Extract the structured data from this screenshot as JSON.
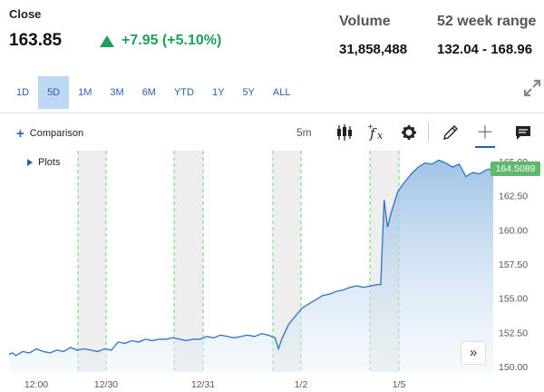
{
  "quote": {
    "close_label": "Close",
    "price": "163.85",
    "change": "+7.95 (+5.10%)",
    "volume_label": "Volume",
    "volume": "31,858,488",
    "range_label": "52 week range",
    "range": "132.04 - 168.96"
  },
  "colors": {
    "up": "#1f9f5a",
    "accent": "#2a5fb0",
    "area": "#9cc2e6",
    "session": "#66dd66",
    "tag": "#5fb86a"
  },
  "ranges": [
    "1D",
    "5D",
    "1M",
    "3M",
    "6M",
    "YTD",
    "1Y",
    "5Y",
    "ALL"
  ],
  "active_range": "5D",
  "toolbar": {
    "comparison_label": "Comparison",
    "interval": "5m",
    "icons": [
      "candlestick-icon",
      "function-icon",
      "gear-icon",
      "pencil-icon",
      "crosshair-icon",
      "comment-icon"
    ]
  },
  "plots_label": "Plots",
  "last_price_tag": "164.5089",
  "chart_data": {
    "type": "area",
    "x_ticks": [
      "12:00",
      "12/30",
      "12/31",
      "1/2",
      "1/5"
    ],
    "y_ticks": [
      "165.00",
      "162.50",
      "160.00",
      "157.50",
      "155.00",
      "152.50",
      "150.00"
    ],
    "ylim": [
      149.6,
      165.4
    ],
    "grid": false,
    "series": [
      {
        "values": [
          [
            0,
            150.9
          ],
          [
            1,
            151.0
          ],
          [
            2,
            150.8
          ],
          [
            4,
            151.1
          ],
          [
            6,
            151.0
          ],
          [
            8,
            151.3
          ],
          [
            10,
            151.1
          ],
          [
            12,
            151.0
          ],
          [
            14,
            151.2
          ],
          [
            16,
            151.1
          ],
          [
            18,
            151.4
          ],
          [
            20,
            151.2
          ],
          [
            22,
            151.3
          ],
          [
            24,
            151.2
          ],
          [
            26,
            151.1
          ],
          [
            28,
            151.3
          ],
          [
            30,
            151.2
          ],
          [
            32,
            151.8
          ],
          [
            34,
            151.7
          ],
          [
            36,
            151.9
          ],
          [
            38,
            151.8
          ],
          [
            40,
            152.0
          ],
          [
            42,
            151.9
          ],
          [
            44,
            152.0
          ],
          [
            46,
            152.0
          ],
          [
            48,
            152.1
          ],
          [
            50,
            152.0
          ],
          [
            52,
            151.9
          ],
          [
            54,
            152.0
          ],
          [
            56,
            152.0
          ],
          [
            58,
            152.2
          ],
          [
            60,
            152.1
          ],
          [
            62,
            152.3
          ],
          [
            64,
            152.2
          ],
          [
            66,
            152.1
          ],
          [
            68,
            152.2
          ],
          [
            70,
            152.3
          ],
          [
            72,
            152.2
          ],
          [
            74,
            152.4
          ],
          [
            76,
            152.3
          ],
          [
            78,
            152.1
          ],
          [
            79,
            151.3
          ],
          [
            80,
            152.0
          ],
          [
            82,
            153.1
          ],
          [
            84,
            153.7
          ],
          [
            86,
            154.3
          ],
          [
            88,
            154.6
          ],
          [
            90,
            154.9
          ],
          [
            92,
            155.2
          ],
          [
            94,
            155.3
          ],
          [
            96,
            155.5
          ],
          [
            98,
            155.6
          ],
          [
            100,
            155.8
          ],
          [
            102,
            155.9
          ],
          [
            104,
            155.8
          ],
          [
            106,
            155.9
          ],
          [
            108,
            156.0
          ],
          [
            109,
            156.0
          ],
          [
            110,
            162.2
          ],
          [
            111,
            160.2
          ],
          [
            112,
            161.2
          ],
          [
            114,
            162.8
          ],
          [
            116,
            163.5
          ],
          [
            118,
            164.1
          ],
          [
            120,
            164.6
          ],
          [
            122,
            164.9
          ],
          [
            124,
            164.8
          ],
          [
            126,
            165.1
          ],
          [
            128,
            164.9
          ],
          [
            130,
            164.6
          ],
          [
            132,
            164.8
          ],
          [
            134,
            163.9
          ],
          [
            136,
            164.2
          ],
          [
            138,
            164.1
          ],
          [
            140,
            164.4
          ],
          [
            142,
            164.5
          ]
        ]
      }
    ]
  }
}
